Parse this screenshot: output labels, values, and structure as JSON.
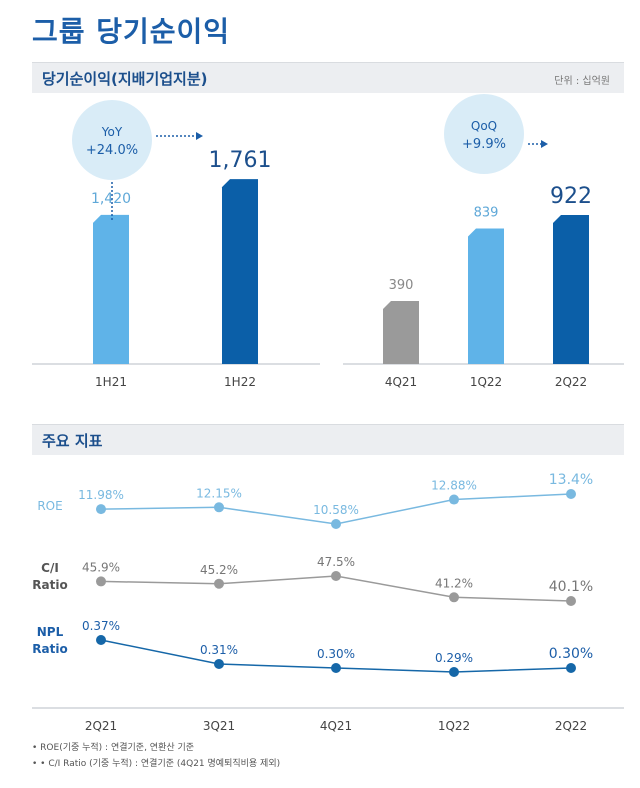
{
  "page_title": "그룹 당기순이익",
  "sections": {
    "net_income_label": "당기순이익(지배기업지분)",
    "unit_label": "단위 : 십억원",
    "indicators_label": "주요 지표"
  },
  "colors": {
    "light_blue": "#5fb3e8",
    "dark_blue": "#0b5fa8",
    "gray": "#9a9a9a",
    "roe_line": "#79b9e0",
    "npl_line": "#1567a8",
    "bubble": "#d9ecf7",
    "axis": "#cfd3d8"
  },
  "yoy": {
    "title": "YoY",
    "value": "+24.0%"
  },
  "qoq": {
    "title": "QoQ",
    "value": "+9.9%"
  },
  "chart_data": [
    {
      "type": "bar",
      "title": "당기순이익(지배기업지분)",
      "group": "half-year",
      "categories": [
        "1H21",
        "1H22"
      ],
      "values": [
        1420,
        1761
      ],
      "value_labels": [
        "1,420",
        "1,761"
      ],
      "bar_colors": [
        "light_blue",
        "dark_blue"
      ],
      "ylim": [
        0,
        2000
      ]
    },
    {
      "type": "bar",
      "title": "당기순이익(지배기업지분)",
      "group": "quarter",
      "categories": [
        "4Q21",
        "1Q22",
        "2Q22"
      ],
      "values": [
        390,
        839,
        922
      ],
      "value_labels": [
        "390",
        "839",
        "922"
      ],
      "bar_colors": [
        "gray",
        "light_blue",
        "dark_blue"
      ],
      "ylim": [
        0,
        1300
      ]
    },
    {
      "type": "line",
      "title": "주요 지표",
      "categories": [
        "2Q21",
        "3Q21",
        "4Q21",
        "1Q22",
        "2Q22"
      ],
      "series": [
        {
          "name": "ROE",
          "label_lines": [
            "ROE"
          ],
          "values": [
            11.98,
            12.15,
            10.58,
            12.88,
            13.4
          ],
          "labels": [
            "11.98%",
            "12.15%",
            "10.58%",
            "12.88%",
            "13.4%"
          ],
          "color": "roe_line"
        },
        {
          "name": "C/I Ratio",
          "label_lines": [
            "C/I",
            "Ratio"
          ],
          "values": [
            45.9,
            45.2,
            47.5,
            41.2,
            40.1
          ],
          "labels": [
            "45.9%",
            "45.2%",
            "47.5%",
            "41.2%",
            "40.1%"
          ],
          "color": "gray"
        },
        {
          "name": "NPL Ratio",
          "label_lines": [
            "NPL",
            "Ratio"
          ],
          "values": [
            0.37,
            0.31,
            0.3,
            0.29,
            0.3
          ],
          "labels": [
            "0.37%",
            "0.31%",
            "0.30%",
            "0.29%",
            "0.30%"
          ],
          "color": "npl_line"
        }
      ]
    }
  ],
  "footnotes": [
    "• ROE(기중 누적) : 연결기준, 연환산 기준",
    "• • C/I Ratio (기중 누적) : 연결기준 (4Q21 명예퇴직비용 제외)"
  ]
}
